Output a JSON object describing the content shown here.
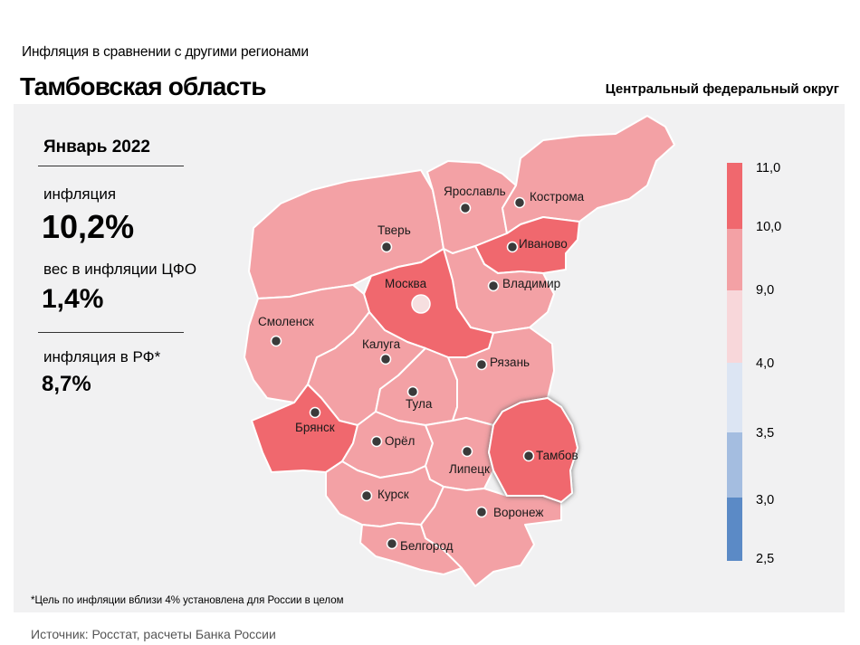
{
  "header": {
    "subtitle": "Инфляция  в сравнении  с другими регионами",
    "title": "Тамбовская область",
    "district": "Центральный федеральный округ"
  },
  "stats": {
    "period": "Январь 2022",
    "inflation_label": "инфляция",
    "inflation_value": "10,2%",
    "weight_label": "вес в инфляции  ЦФО",
    "weight_value": "1,4%",
    "rf_label": "инфляция  в РФ*",
    "rf_value": "8,7%"
  },
  "footnote": "*Цель по инфляции вблизи 4% установлена для России в целом",
  "source": "Источник: Росстат, расчеты Банка России",
  "colors": {
    "bin_10_11": "#f0686e",
    "bin_9_10": "#f3a1a5",
    "bin_4_9": "#f8d7da",
    "bin_3_5_4": "#dce5f3",
    "bin_3_3_5": "#a4bde0",
    "bin_2_5_3": "#5b8ac6"
  },
  "legend": {
    "ticks": [
      "11,0",
      "10,0",
      "9,0",
      "4,0",
      "3,5",
      "3,0",
      "2,5"
    ]
  },
  "regions": [
    {
      "name": "Ярославль",
      "bin": "9-10"
    },
    {
      "name": "Кострома",
      "bin": "9-10"
    },
    {
      "name": "Тверь",
      "bin": "9-10"
    },
    {
      "name": "Иваново",
      "bin": "10-11"
    },
    {
      "name": "Москва",
      "bin": "10-11"
    },
    {
      "name": "Владимир",
      "bin": "9-10"
    },
    {
      "name": "Смоленск",
      "bin": "9-10"
    },
    {
      "name": "Калуга",
      "bin": "9-10"
    },
    {
      "name": "Рязань",
      "bin": "9-10"
    },
    {
      "name": "Тула",
      "bin": "9-10"
    },
    {
      "name": "Брянск",
      "bin": "10-11"
    },
    {
      "name": "Орёл",
      "bin": "9-10"
    },
    {
      "name": "Липецк",
      "bin": "9-10"
    },
    {
      "name": "Тамбов",
      "bin": "10-11"
    },
    {
      "name": "Курск",
      "bin": "9-10"
    },
    {
      "name": "Воронеж",
      "bin": "9-10"
    },
    {
      "name": "Белгород",
      "bin": "9-10"
    }
  ]
}
